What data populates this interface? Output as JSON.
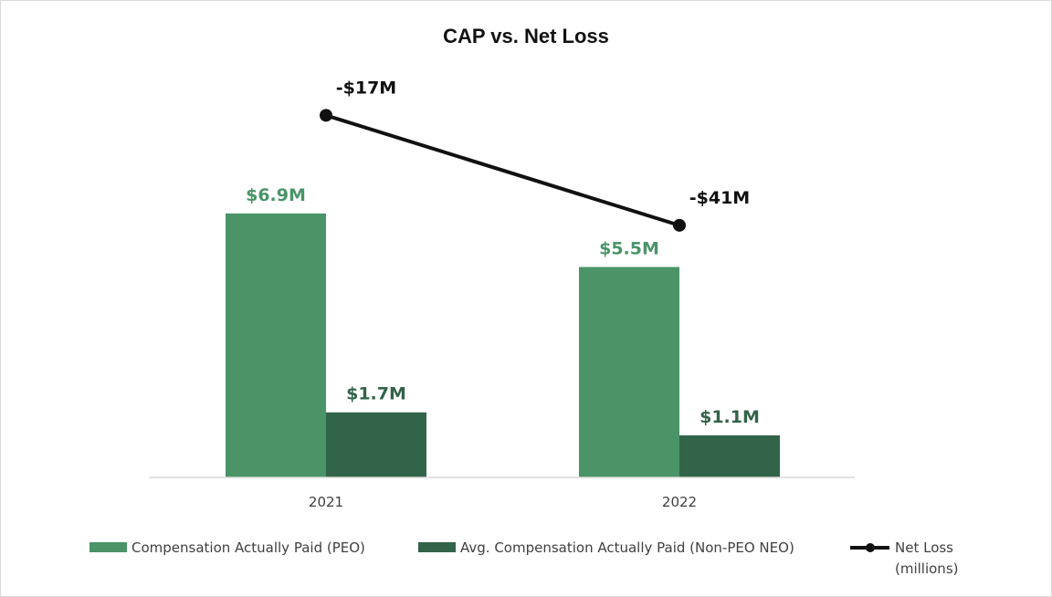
{
  "chart_data": {
    "type": "bar",
    "title": "CAP vs. Net Loss",
    "categories": [
      "2021",
      "2022"
    ],
    "series": [
      {
        "name": "Compensation Actually Paid (PEO)",
        "type": "bar",
        "color": "#4a9468",
        "label_color": "#4a9468",
        "values": [
          6.9,
          5.5
        ],
        "labels": [
          "$6.9M",
          "$5.5M"
        ]
      },
      {
        "name": "Avg. Compensation Actually Paid (Non-PEO NEO)",
        "type": "bar",
        "color": "#326449",
        "label_color": "#326449",
        "values": [
          1.7,
          1.1
        ],
        "labels": [
          "$1.7M",
          "$1.1M"
        ]
      },
      {
        "name": "Net Loss",
        "name_line2": "(millions)",
        "type": "line",
        "color": "#111111",
        "values": [
          -17,
          -41
        ],
        "labels": [
          "-$17M",
          "-$41M"
        ]
      }
    ],
    "bar_ylim": [
      0,
      11.5
    ],
    "line_ylim": [
      -96,
      0
    ],
    "legend_position": "bottom",
    "grid": false
  }
}
